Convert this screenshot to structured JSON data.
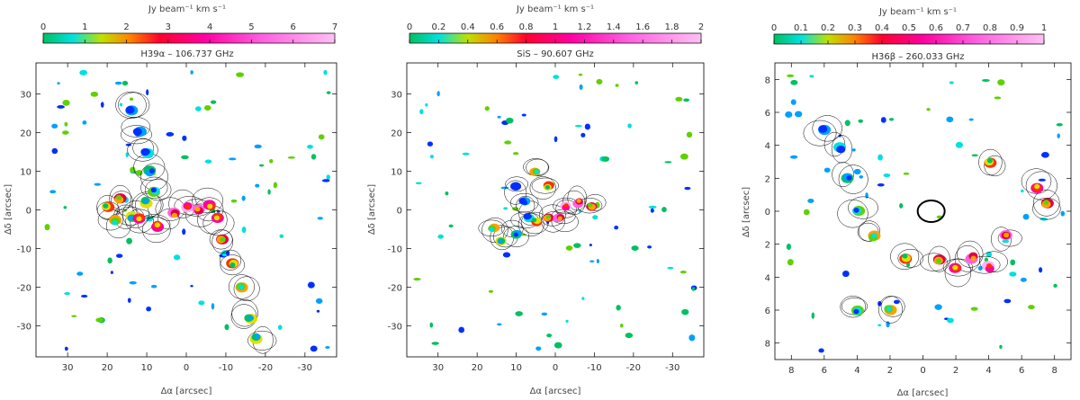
{
  "chart_data": [
    {
      "type": "heatmap",
      "title": "H39α – 106.737 GHz",
      "colorbar": {
        "label": "Jy beam⁻¹ km s⁻¹",
        "ticks": [
          "0",
          "1",
          "2",
          "3",
          "4",
          "5",
          "6",
          "7"
        ],
        "range": [
          0,
          7
        ]
      },
      "xlabel": "Δα [arcsec]",
      "ylabel": "Δδ [arcsec]",
      "xlim": [
        38,
        -38
      ],
      "ylim": [
        -38,
        38
      ],
      "xticks": [
        30,
        20,
        10,
        0,
        -10,
        -20,
        -30
      ],
      "yticks": [
        -30,
        -20,
        -10,
        0,
        10,
        20,
        30
      ],
      "contours": true
    },
    {
      "type": "heatmap",
      "title": "SiS – 90.607 GHz",
      "colorbar": {
        "label": "Jy beam⁻¹ km s⁻¹",
        "ticks": [
          "0",
          "0.2",
          "0.4",
          "0.6",
          "0.8",
          "1",
          "1.2",
          "1.4",
          "1.6",
          "1.8",
          "2"
        ],
        "range": [
          0,
          2
        ]
      },
      "xlabel": "Δα [arcsec]",
      "ylabel": "Δδ [arcsec]",
      "xlim": [
        38,
        -38
      ],
      "ylim": [
        -38,
        38
      ],
      "xticks": [
        30,
        20,
        10,
        0,
        -10,
        -20,
        -30
      ],
      "yticks": [
        -30,
        -20,
        -10,
        0,
        10,
        20,
        30
      ],
      "contours": true
    },
    {
      "type": "heatmap",
      "title": "H36β – 260.033 GHz",
      "colorbar": {
        "label": "Jy beam⁻¹ km s⁻¹",
        "ticks": [
          "0",
          "0.1",
          "0.2",
          "0.3",
          "0.4",
          "0.5",
          "0.6",
          "0.7",
          "0.8",
          "0.9",
          "1"
        ],
        "range": [
          0,
          1
        ]
      },
      "xlabel": "Δα [arcsec]",
      "ylabel": "Δδ [arcsec]",
      "xlim": [
        9,
        -9
      ],
      "ylim": [
        -9,
        9
      ],
      "xticks": [
        8,
        6,
        4,
        2,
        0,
        -2,
        -4,
        -6,
        -8
      ],
      "xticklabels": [
        "8",
        "6",
        "4",
        "2",
        "0",
        "2",
        "4",
        "6",
        "8"
      ],
      "yticks": [
        -8,
        -6,
        -4,
        -2,
        0,
        2,
        4,
        6,
        8
      ],
      "yticklabels": [
        "8",
        "6",
        "4",
        "2",
        "0",
        "2",
        "4",
        "6",
        "8"
      ],
      "contours": true
    }
  ],
  "colors": {
    "c1": "#000090",
    "c2": "#0030ff",
    "c3": "#00a0ff",
    "c4": "#00e0e0",
    "c5": "#00c060",
    "c6": "#60d000",
    "c7": "#e0e000",
    "c8": "#ffa000",
    "c9": "#ff3000",
    "c10": "#e00040",
    "c11": "#ff00a0",
    "c12": "#ff60e0",
    "c13": "#ffb0f0",
    "contour": "#000000"
  }
}
